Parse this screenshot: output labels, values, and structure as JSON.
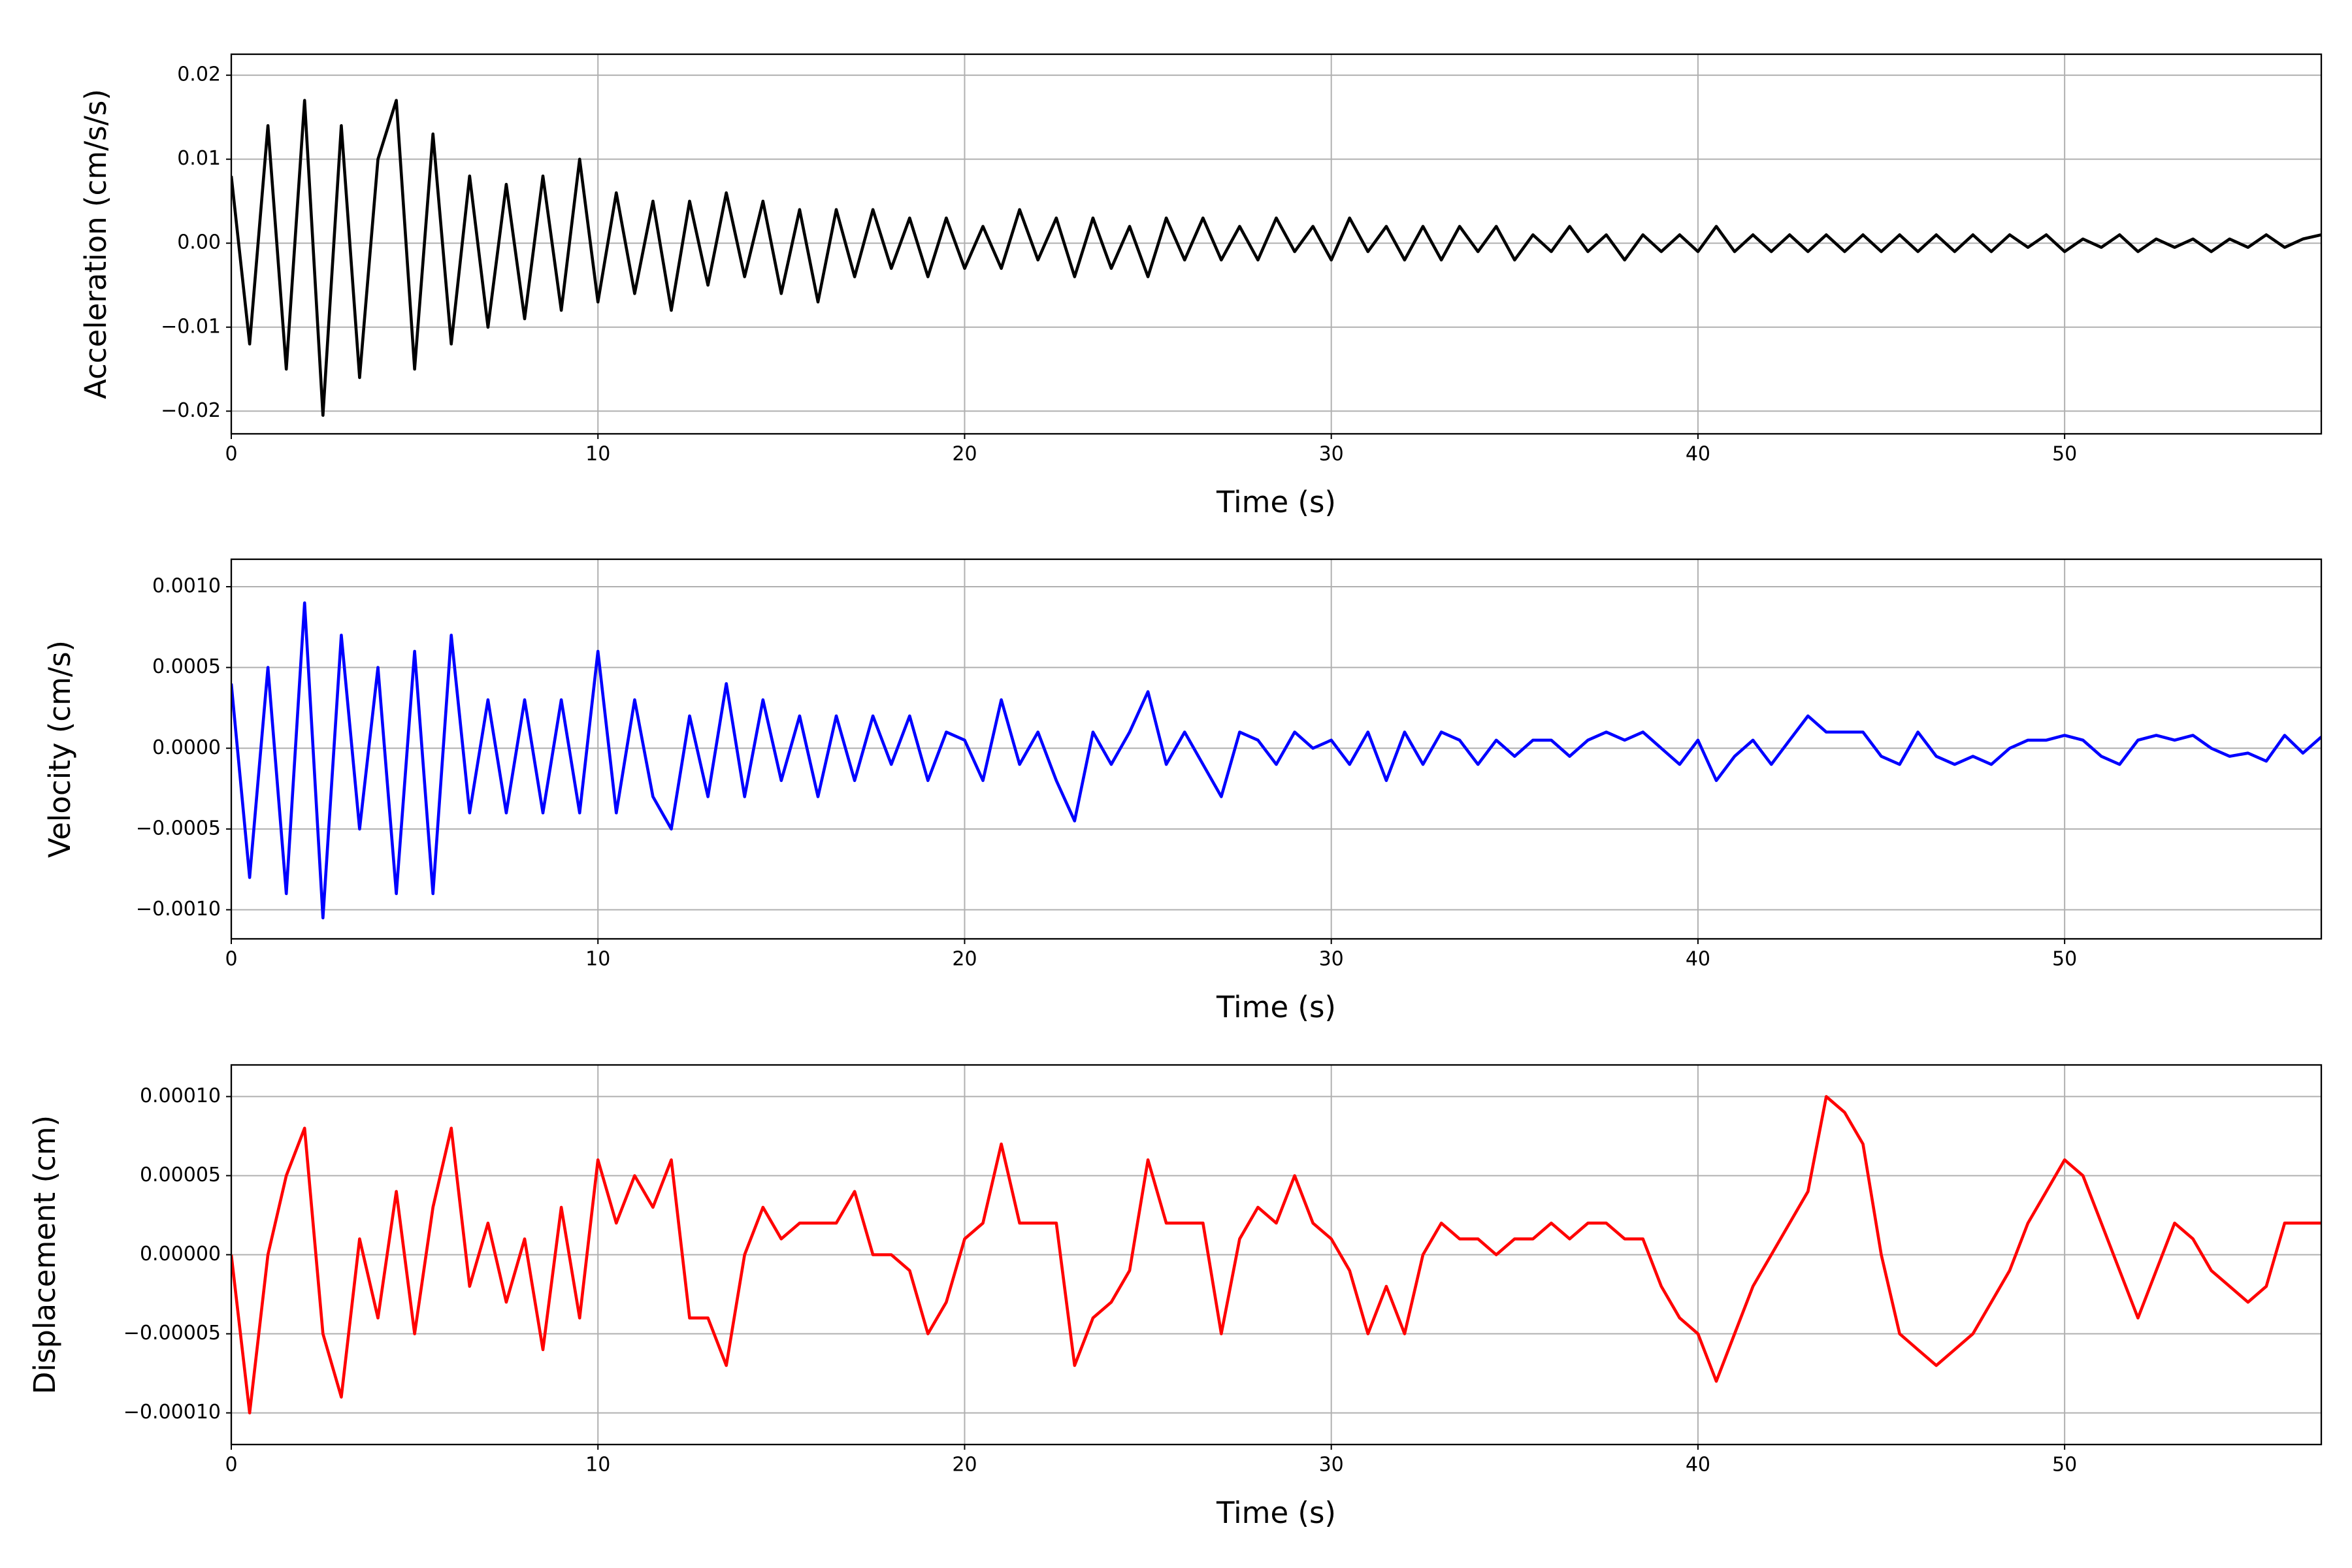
{
  "chart_data": [
    {
      "type": "line",
      "ylabel": "Acceleration (cm/s/s)",
      "xlabel": "Time (s)",
      "color": "#000000",
      "grid": true,
      "xlim": [
        0,
        57
      ],
      "xticks": [
        0,
        10,
        20,
        30,
        40,
        50
      ],
      "ylim": [
        -0.0227,
        0.0225
      ],
      "yticks": [
        {
          "value": -0.02,
          "label": "−0.02"
        },
        {
          "value": -0.01,
          "label": "−0.01"
        },
        {
          "value": 0,
          "label": "0.00"
        },
        0.01,
        0.02
      ],
      "x": [
        0,
        0.5,
        1,
        1.5,
        2,
        2.5,
        3,
        3.5,
        4,
        4.5,
        5,
        5.5,
        6,
        6.5,
        7,
        7.5,
        8,
        8.5,
        9,
        9.5,
        10,
        10.5,
        11,
        11.5,
        12,
        12.5,
        13,
        13.5,
        14,
        14.5,
        15,
        15.5,
        16,
        16.5,
        17,
        17.5,
        18,
        18.5,
        19,
        19.5,
        20,
        20.5,
        21,
        21.5,
        22,
        22.5,
        23,
        23.5,
        24,
        24.5,
        25,
        25.5,
        26,
        26.5,
        27,
        27.5,
        28,
        28.5,
        29,
        29.5,
        30,
        30.5,
        31,
        31.5,
        32,
        32.5,
        33,
        33.5,
        34,
        34.5,
        35,
        35.5,
        36,
        36.5,
        37,
        37.5,
        38,
        38.5,
        39,
        39.5,
        40,
        40.5,
        41,
        41.5,
        42,
        42.5,
        43,
        43.5,
        44,
        44.5,
        45,
        45.5,
        46,
        46.5,
        47,
        47.5,
        48,
        48.5,
        49,
        49.5,
        50,
        50.5,
        51,
        51.5,
        52,
        52.5,
        53,
        53.5,
        54,
        54.5,
        55,
        55.5,
        56,
        56.5,
        57
      ],
      "values": [
        0.008,
        -0.012,
        0.014,
        -0.015,
        0.017,
        -0.0205,
        0.014,
        -0.016,
        0.01,
        0.017,
        -0.015,
        0.013,
        -0.012,
        0.008,
        -0.01,
        0.007,
        -0.009,
        0.008,
        -0.008,
        0.01,
        -0.007,
        0.006,
        -0.006,
        0.005,
        -0.008,
        0.005,
        -0.005,
        0.006,
        -0.004,
        0.005,
        -0.006,
        0.004,
        -0.007,
        0.004,
        -0.004,
        0.004,
        -0.003,
        0.003,
        -0.004,
        0.003,
        -0.003,
        0.002,
        -0.003,
        0.004,
        -0.002,
        0.003,
        -0.004,
        0.003,
        -0.003,
        0.002,
        -0.004,
        0.003,
        -0.002,
        0.003,
        -0.002,
        0.002,
        -0.002,
        0.003,
        -0.001,
        0.002,
        -0.002,
        0.003,
        -0.001,
        0.002,
        -0.002,
        0.002,
        -0.002,
        0.002,
        -0.001,
        0.002,
        -0.002,
        0.001,
        -0.001,
        0.002,
        -0.001,
        0.001,
        -0.002,
        0.001,
        -0.001,
        0.001,
        -0.001,
        0.002,
        -0.001,
        0.001,
        -0.001,
        0.001,
        -0.001,
        0.001,
        -0.001,
        0.001,
        -0.001,
        0.001,
        -0.001,
        0.001,
        -0.001,
        0.001,
        -0.001,
        0.001,
        -0.0005,
        0.001,
        -0.001,
        0.0005,
        -0.0005,
        0.001,
        -0.001,
        0.0005,
        -0.0005,
        0.0005,
        -0.001,
        0.0005,
        -0.0005,
        0.001,
        -0.0005,
        0.0005,
        0.001
      ]
    },
    {
      "type": "line",
      "ylabel": "Velocity (cm/s)",
      "xlabel": "Time (s)",
      "color": "#0000ff",
      "grid": true,
      "xlim": [
        0,
        57
      ],
      "xticks": [
        0,
        10,
        20,
        30,
        40,
        50
      ],
      "ylim": [
        -0.00118,
        0.00117
      ],
      "yticks": [
        {
          "value": -0.001,
          "label": "−0.0010"
        },
        {
          "value": -0.0005,
          "label": "−0.0005"
        },
        {
          "value": 0,
          "label": "0.0000"
        },
        0.0005,
        {
          "value": 0.001,
          "label": "0.0010"
        }
      ],
      "x": [
        0,
        0.5,
        1,
        1.5,
        2,
        2.5,
        3,
        3.5,
        4,
        4.5,
        5,
        5.5,
        6,
        6.5,
        7,
        7.5,
        8,
        8.5,
        9,
        9.5,
        10,
        10.5,
        11,
        11.5,
        12,
        12.5,
        13,
        13.5,
        14,
        14.5,
        15,
        15.5,
        16,
        16.5,
        17,
        17.5,
        18,
        18.5,
        19,
        19.5,
        20,
        20.5,
        21,
        21.5,
        22,
        22.5,
        23,
        23.5,
        24,
        24.5,
        25,
        25.5,
        26,
        26.5,
        27,
        27.5,
        28,
        28.5,
        29,
        29.5,
        30,
        30.5,
        31,
        31.5,
        32,
        32.5,
        33,
        33.5,
        34,
        34.5,
        35,
        35.5,
        36,
        36.5,
        37,
        37.5,
        38,
        38.5,
        39,
        39.5,
        40,
        40.5,
        41,
        41.5,
        42,
        42.5,
        43,
        43.5,
        44,
        44.5,
        45,
        45.5,
        46,
        46.5,
        47,
        47.5,
        48,
        48.5,
        49,
        49.5,
        50,
        50.5,
        51,
        51.5,
        52,
        52.5,
        53,
        53.5,
        54,
        54.5,
        55,
        55.5,
        56,
        56.5,
        57
      ],
      "values": [
        0.0004,
        -0.0008,
        0.0005,
        -0.0009,
        0.0009,
        -0.00105,
        0.0007,
        -0.0005,
        0.0005,
        -0.0009,
        0.0006,
        -0.0009,
        0.0007,
        -0.0004,
        0.0003,
        -0.0004,
        0.0003,
        -0.0004,
        0.0003,
        -0.0004,
        0.0006,
        -0.0004,
        0.0003,
        -0.0003,
        -0.0005,
        0.0002,
        -0.0003,
        0.0004,
        -0.0003,
        0.0003,
        -0.0002,
        0.0002,
        -0.0003,
        0.0002,
        -0.0002,
        0.0002,
        -0.0001,
        0.0002,
        -0.0002,
        0.0001,
        5e-05,
        -0.0002,
        0.0003,
        -0.0001,
        0.0001,
        -0.0002,
        -0.00045,
        0.0001,
        -0.0001,
        0.0001,
        0.00035,
        -0.0001,
        0.0001,
        -0.0001,
        -0.0003,
        0.0001,
        5e-05,
        -0.0001,
        0.0001,
        0,
        5e-05,
        -0.0001,
        0.0001,
        -0.0002,
        0.0001,
        -0.0001,
        0.0001,
        5e-05,
        -0.0001,
        5e-05,
        -5e-05,
        5e-05,
        5e-05,
        -5e-05,
        5e-05,
        0.0001,
        5e-05,
        0.0001,
        0,
        -0.0001,
        5e-05,
        -0.0002,
        -5e-05,
        5e-05,
        -0.0001,
        5e-05,
        0.0002,
        0.0001,
        0.0001,
        0.0001,
        -5e-05,
        -0.0001,
        0.0001,
        -5e-05,
        -0.0001,
        -5e-05,
        -0.0001,
        0,
        5e-05,
        5e-05,
        8e-05,
        5e-05,
        -5e-05,
        -0.0001,
        5e-05,
        8e-05,
        5e-05,
        8e-05,
        0,
        -5e-05,
        -3e-05,
        -8e-05,
        8e-05,
        -3e-05,
        7e-05
      ]
    },
    {
      "type": "line",
      "ylabel": "Displacement (cm)",
      "xlabel": "Time (s)",
      "color": "#ff0000",
      "grid": true,
      "xlim": [
        0,
        57
      ],
      "xticks": [
        0,
        10,
        20,
        30,
        40,
        50
      ],
      "ylim": [
        -0.00012,
        0.00012
      ],
      "yticks": [
        {
          "value": -0.0001,
          "label": "−0.00010"
        },
        {
          "value": -5e-05,
          "label": "−0.00005"
        },
        {
          "value": 0,
          "label": "0.00000"
        },
        5e-05,
        {
          "value": 0.0001,
          "label": "0.00010"
        }
      ],
      "x": [
        0,
        0.5,
        1,
        1.5,
        2,
        2.5,
        3,
        3.5,
        4,
        4.5,
        5,
        5.5,
        6,
        6.5,
        7,
        7.5,
        8,
        8.5,
        9,
        9.5,
        10,
        10.5,
        11,
        11.5,
        12,
        12.5,
        13,
        13.5,
        14,
        14.5,
        15,
        15.5,
        16,
        16.5,
        17,
        17.5,
        18,
        18.5,
        19,
        19.5,
        20,
        20.5,
        21,
        21.5,
        22,
        22.5,
        23,
        23.5,
        24,
        24.5,
        25,
        25.5,
        26,
        26.5,
        27,
        27.5,
        28,
        28.5,
        29,
        29.5,
        30,
        30.5,
        31,
        31.5,
        32,
        32.5,
        33,
        33.5,
        34,
        34.5,
        35,
        35.5,
        36,
        36.5,
        37,
        37.5,
        38,
        38.5,
        39,
        39.5,
        40,
        40.5,
        41,
        41.5,
        42,
        42.5,
        43,
        43.5,
        44,
        44.5,
        45,
        45.5,
        46,
        46.5,
        47,
        47.5,
        48,
        48.5,
        49,
        49.5,
        50,
        50.5,
        51,
        51.5,
        52,
        52.5,
        53,
        53.5,
        54,
        54.5,
        55,
        55.5,
        56,
        56.5,
        57
      ],
      "values": [
        0,
        -0.0001,
        0,
        5e-05,
        8e-05,
        -5e-05,
        -9e-05,
        1e-05,
        -4e-05,
        4e-05,
        -5e-05,
        3e-05,
        8e-05,
        -2e-05,
        2e-05,
        -3e-05,
        1e-05,
        -6e-05,
        3e-05,
        -4e-05,
        6e-05,
        2e-05,
        5e-05,
        3e-05,
        6e-05,
        -4e-05,
        -4e-05,
        -7e-05,
        0,
        3e-05,
        1e-05,
        2e-05,
        2e-05,
        2e-05,
        4e-05,
        0,
        0,
        -1e-05,
        -5e-05,
        -3e-05,
        1e-05,
        2e-05,
        7e-05,
        2e-05,
        2e-05,
        2e-05,
        -7e-05,
        -4e-05,
        -3e-05,
        -1e-05,
        6e-05,
        2e-05,
        2e-05,
        2e-05,
        -5e-05,
        1e-05,
        3e-05,
        2e-05,
        5e-05,
        2e-05,
        1e-05,
        -1e-05,
        -5e-05,
        -2e-05,
        -5e-05,
        0,
        2e-05,
        1e-05,
        1e-05,
        0,
        1e-05,
        1e-05,
        2e-05,
        1e-05,
        2e-05,
        2e-05,
        1e-05,
        1e-05,
        -2e-05,
        -4e-05,
        -5e-05,
        -8e-05,
        -5e-05,
        -2e-05,
        0,
        2e-05,
        4e-05,
        0.0001,
        9e-05,
        7e-05,
        0,
        -5e-05,
        -6e-05,
        -7e-05,
        -6e-05,
        -5e-05,
        -3e-05,
        -1e-05,
        2e-05,
        4e-05,
        6e-05,
        5e-05,
        2e-05,
        -1e-05,
        -4e-05,
        -1e-05,
        2e-05,
        1e-05,
        -1e-05,
        -2e-05,
        -3e-05,
        -2e-05,
        2e-05,
        2e-05,
        2e-05
      ]
    }
  ]
}
